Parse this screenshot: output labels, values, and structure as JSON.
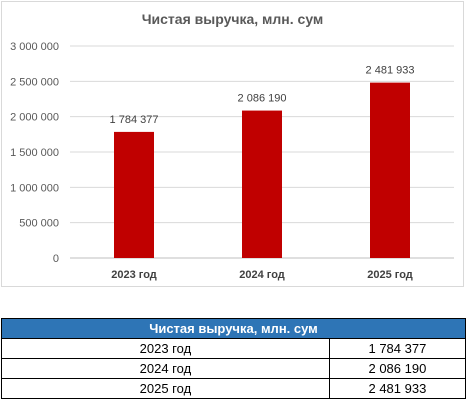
{
  "chart_data": {
    "type": "bar",
    "title": "Чистая выручка, млн. сум",
    "categories": [
      "2023 год",
      "2024 год",
      "2025 год"
    ],
    "values": [
      1784377,
      2086190,
      2481933
    ],
    "data_labels": [
      "1 784 377",
      "2 086 190",
      "2 481 933"
    ],
    "y_ticks": [
      "0",
      "500 000",
      "1 000 000",
      "1 500 000",
      "2 000 000",
      "2 500 000",
      "3 000 000"
    ],
    "ylim": [
      0,
      3000000
    ],
    "bar_color": "#c00000",
    "grid": true,
    "legend": "none"
  },
  "table": {
    "header": "Чистая выручка, млн. сум",
    "header_color": "#2e75b6",
    "rows": [
      {
        "label": "2023 год",
        "value": "1 784 377"
      },
      {
        "label": "2024 год",
        "value": "2 086 190"
      },
      {
        "label": "2025 год",
        "value": "2 481 933"
      }
    ]
  }
}
